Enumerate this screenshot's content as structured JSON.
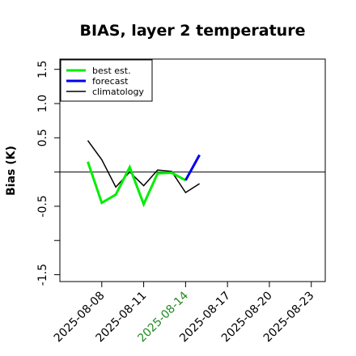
{
  "chart_data": {
    "type": "line",
    "title": "BIAS, layer 2 temperature",
    "ylabel": "Bias (K)",
    "xlabel": "",
    "ylim": [
      -1.6,
      1.65
    ],
    "yticks": [
      -1.5,
      -1.0,
      -0.5,
      0.0,
      0.5,
      1.0,
      1.5
    ],
    "ytick_labels": [
      "-1.5",
      "",
      "-0.5",
      "",
      "0.5",
      "1.0",
      "1.5"
    ],
    "xlim": [
      "2025-08-05",
      "2025-08-24"
    ],
    "xticks": [
      "2025-08-08",
      "2025-08-11",
      "2025-08-14",
      "2025-08-17",
      "2025-08-20",
      "2025-08-23"
    ],
    "xtick_colors": [
      "#000000",
      "#000000",
      "#228b22",
      "#000000",
      "#000000",
      "#000000"
    ],
    "zero_line": true,
    "grid": false,
    "legend_position": "top-left",
    "series": [
      {
        "name": "best est.",
        "color": "#00ee00",
        "width": 3,
        "points": [
          [
            "2025-08-07",
            0.15
          ],
          [
            "2025-08-08",
            -0.45
          ],
          [
            "2025-08-09",
            -0.33
          ],
          [
            "2025-08-10",
            0.07
          ],
          [
            "2025-08-11",
            -0.47
          ],
          [
            "2025-08-12",
            -0.02
          ],
          [
            "2025-08-13",
            -0.01
          ],
          [
            "2025-08-14",
            -0.12
          ]
        ]
      },
      {
        "name": "forecast",
        "color": "#0000ee",
        "width": 3,
        "points": [
          [
            "2025-08-14",
            -0.12
          ],
          [
            "2025-08-15",
            0.25
          ]
        ]
      },
      {
        "name": "climatology",
        "color": "#000000",
        "width": 1.5,
        "points": [
          [
            "2025-08-07",
            0.46
          ],
          [
            "2025-08-08",
            0.18
          ],
          [
            "2025-08-09",
            -0.22
          ],
          [
            "2025-08-10",
            0.0
          ],
          [
            "2025-08-11",
            -0.2
          ],
          [
            "2025-08-12",
            0.03
          ],
          [
            "2025-08-13",
            0.01
          ],
          [
            "2025-08-14",
            -0.3
          ],
          [
            "2025-08-15",
            -0.17
          ]
        ]
      }
    ]
  }
}
